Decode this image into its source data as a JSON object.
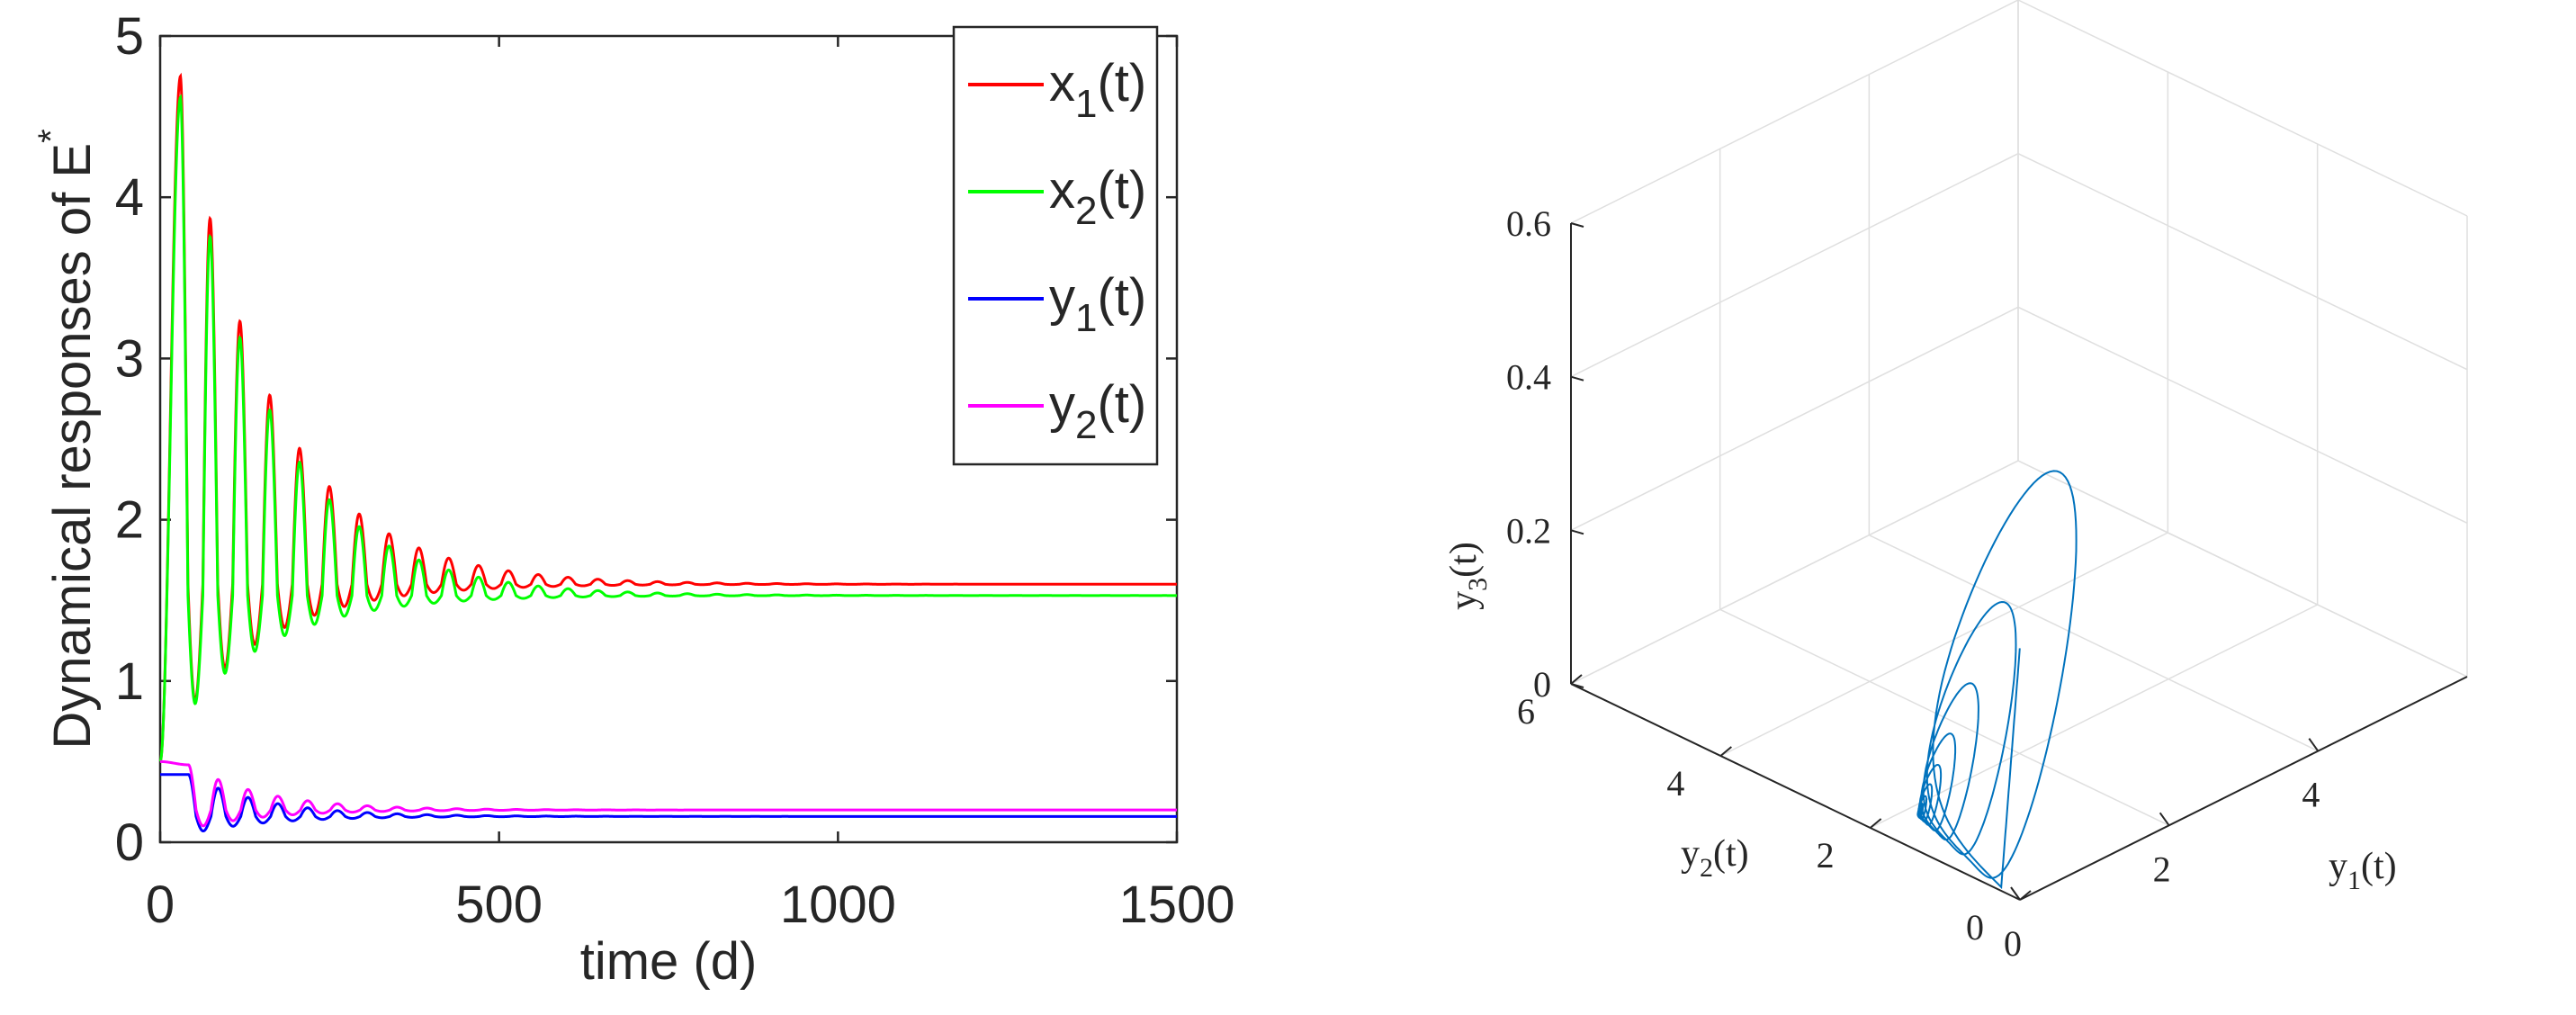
{
  "chart_data": [
    {
      "type": "line",
      "xlabel": "time (d)",
      "ylabel_text": "Dynamical responses of E",
      "ylabel_superscript": "*",
      "xlim": [
        0,
        1500
      ],
      "ylim": [
        0,
        5
      ],
      "xticks": [
        "0",
        "500",
        "1000",
        "1500"
      ],
      "yticks": [
        "0",
        "1",
        "2",
        "3",
        "4",
        "5"
      ],
      "grid": false,
      "legend_position": "top-right",
      "series": [
        {
          "name": "x1(t)",
          "label_base": "x",
          "label_sub": "1",
          "label_tail": "(t)",
          "color": "#ff0000",
          "initial": 0.5,
          "peak_time": 30,
          "period": 44,
          "first_peak": 4.75,
          "first_trough": 0.75,
          "equilibrium": 1.6,
          "decay_per_day": 0.0075
        },
        {
          "name": "x2(t)",
          "label_base": "x",
          "label_sub": "2",
          "label_tail": "(t)",
          "color": "#00ff00",
          "initial": 0.5,
          "peak_time": 30,
          "period": 44,
          "first_peak": 4.62,
          "first_trough": 0.74,
          "equilibrium": 1.53,
          "decay_per_day": 0.0075
        },
        {
          "name": "y1(t)",
          "label_base": "y",
          "label_sub": "1",
          "label_tail": "(t)",
          "color": "#0000ff",
          "initial": 0.42,
          "peak_time": 42,
          "period": 44,
          "first_peak": 0.42,
          "first_trough": 0.05,
          "equilibrium": 0.16,
          "decay_per_day": 0.009
        },
        {
          "name": "y2(t)",
          "label_base": "y",
          "label_sub": "2",
          "label_tail": "(t)",
          "color": "#ff00ff",
          "initial": 0.5,
          "peak_time": 42,
          "period": 44,
          "first_peak": 0.48,
          "first_trough": 0.08,
          "equilibrium": 0.2,
          "decay_per_day": 0.009
        }
      ]
    },
    {
      "type": "line3d",
      "xlabel_base": "y",
      "xlabel_sub": "1",
      "xlabel_tail": "(t)",
      "ylabel_base": "y",
      "ylabel_sub": "2",
      "ylabel_tail": "(t)",
      "zlabel_base": "y",
      "zlabel_sub": "3",
      "zlabel_tail": "(t)",
      "xlim": [
        0,
        6
      ],
      "ylim": [
        0,
        6
      ],
      "zlim": [
        0,
        0.6
      ],
      "xticks": [
        "0",
        "2",
        "4"
      ],
      "yticks": [
        "0",
        "2",
        "4",
        "6"
      ],
      "zticks": [
        "0",
        "0.2",
        "0.4",
        "0.6"
      ],
      "grid": true,
      "color": "#0072bd",
      "trajectory": {
        "start": [
          0.5,
          0.5,
          0.28
        ],
        "equilibrium": [
          0.16,
          1.53,
          0.03
        ],
        "first_excursion": [
          4.4,
          3.2,
          0.3
        ],
        "first_min": [
          0.05,
          0.3,
          0.0
        ],
        "turns": 9,
        "decay_per_turn": 0.62
      }
    }
  ]
}
